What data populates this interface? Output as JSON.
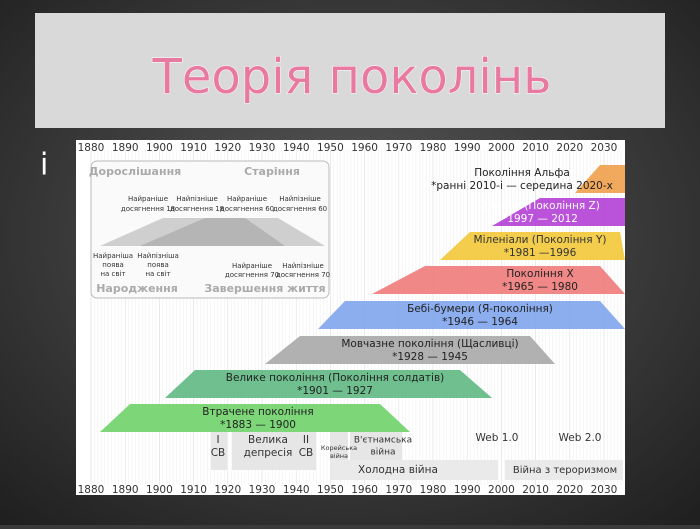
{
  "title": "Теорія поколінь",
  "bullet": "і",
  "timeline": {
    "years": [
      1880,
      1890,
      1900,
      1910,
      1920,
      1930,
      1940,
      1950,
      1960,
      1970,
      1980,
      1990,
      2000,
      2010,
      2020,
      2030
    ],
    "legend": {
      "top_left": "Дорослішання",
      "top_right": "Старіння",
      "bottom_left": "Народження",
      "bottom_right": "Завершення життя",
      "upper_labels": [
        [
          "Найраніше",
          "досягнення 18"
        ],
        [
          "Найпізніше",
          "досягнення 18"
        ],
        [
          "Найраніше",
          "досягнення 60"
        ],
        [
          "Найпізніше",
          "досягнення 60"
        ]
      ],
      "lower_labels": [
        [
          "Найраніша",
          "поява",
          "на світ"
        ],
        [
          "Найпізніша",
          "поява",
          "на світ"
        ],
        [
          "Найраніше",
          "досягнення 70"
        ],
        [
          "Найпізніше",
          "досягнення 70"
        ]
      ]
    },
    "generations": [
      {
        "name": "Покоління Альфа",
        "period": "*ранні 2010-і — середина 2020-х"
      },
      {
        "name": "Зумери (Покоління Z)",
        "period": "*1997 — 2012"
      },
      {
        "name": "Міленіали (Покоління Y)",
        "period": "*1981 —1996"
      },
      {
        "name": "Покоління X",
        "period": "*1965 — 1980"
      },
      {
        "name": "Бебі-бумери (Я-покоління)",
        "period": "*1946 — 1964"
      },
      {
        "name": "Мовчазне покоління (Щасливці)",
        "period": "*1928 — 1945"
      },
      {
        "name": "Велике покоління (Покоління солдатів)",
        "period": "*1901 — 1927"
      },
      {
        "name": "Втрачене покоління",
        "period": "*1883 — 1900"
      }
    ],
    "events": [
      [
        "I",
        "СВ"
      ],
      [
        "Велика",
        "депресія"
      ],
      [
        "II",
        "СВ"
      ],
      [
        "Корейська",
        "війна"
      ],
      [
        "В'єтнамська",
        "війна"
      ],
      [
        "Холодна війна"
      ],
      [
        "Web 1.0"
      ],
      [
        "Web 2.0"
      ],
      [
        "Війна з тероризмом"
      ]
    ]
  }
}
